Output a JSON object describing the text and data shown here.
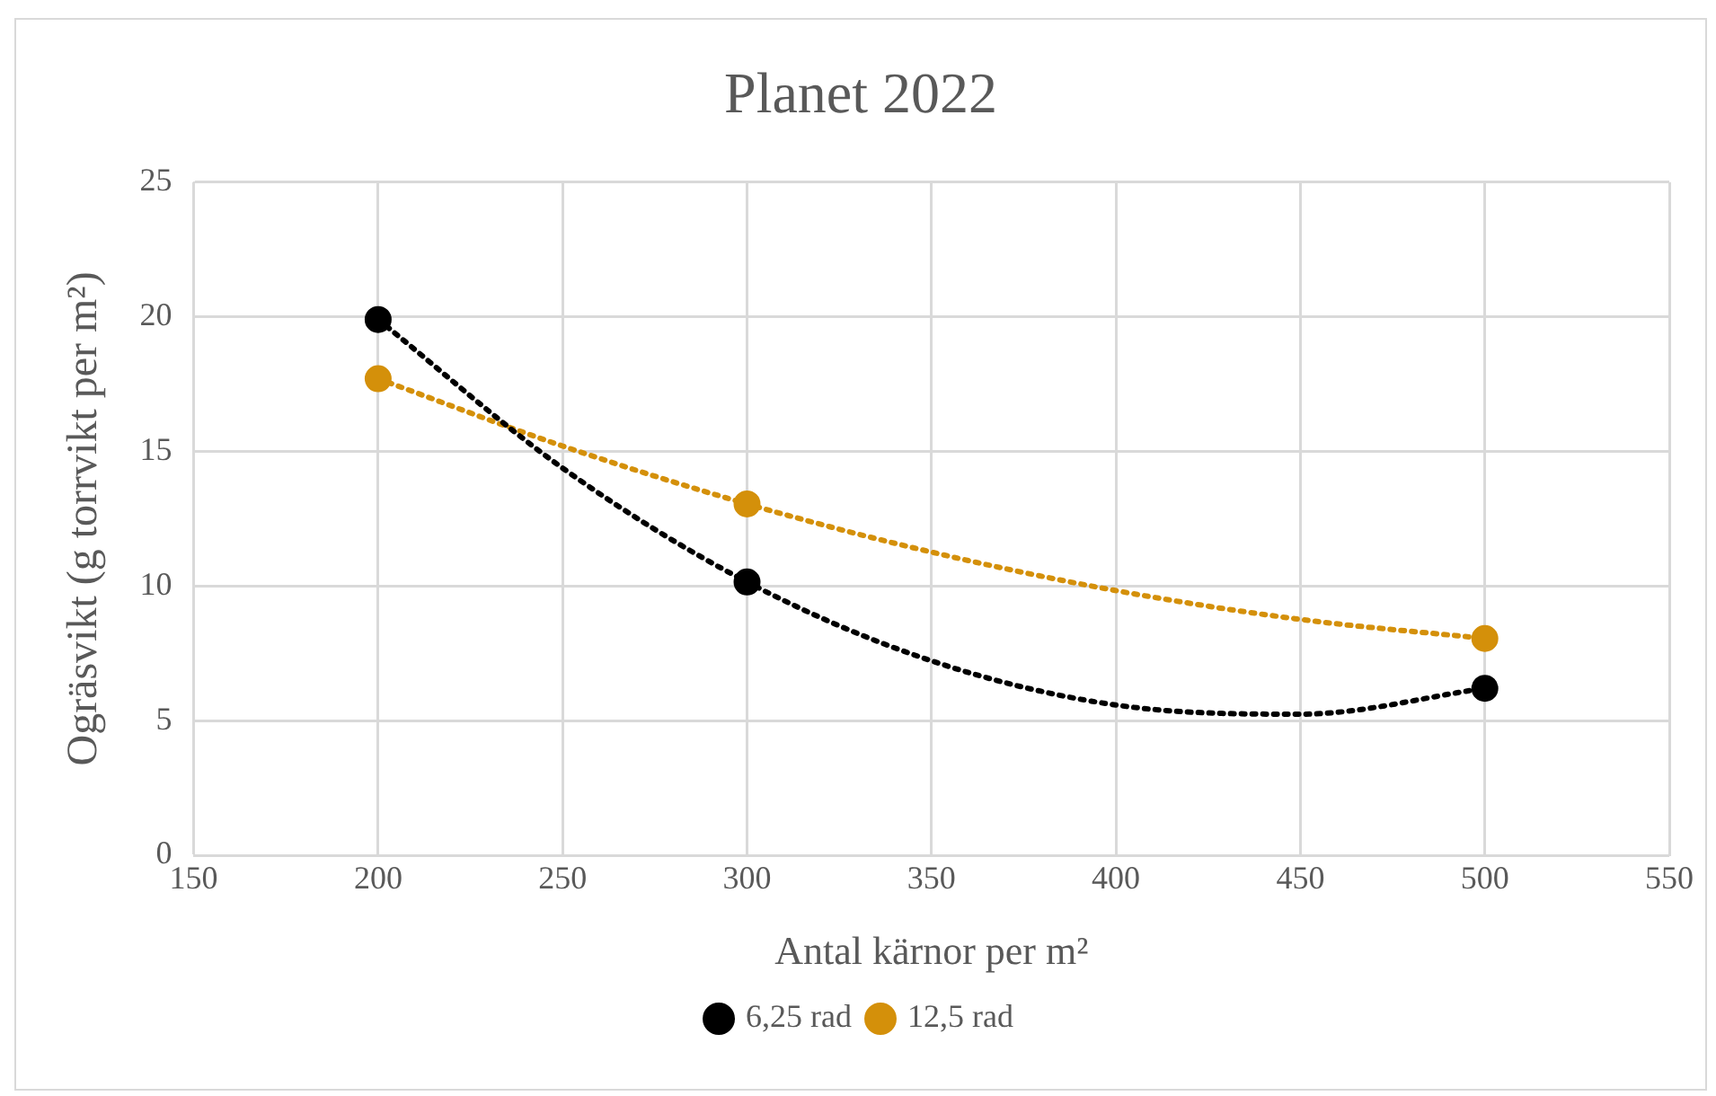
{
  "chart_data": {
    "type": "scatter",
    "title": "Planet 2022",
    "xlabel": "Antal kärnor per m²",
    "ylabel": "Ogräsvikt (g torrvikt per m²)",
    "xlim": [
      150,
      550
    ],
    "xticks": [
      150,
      200,
      250,
      300,
      350,
      400,
      450,
      500,
      550
    ],
    "ylim": [
      0,
      25
    ],
    "yticks": [
      0,
      5,
      10,
      15,
      20,
      25
    ],
    "grid": true,
    "legend": "bottom",
    "marker": "circle",
    "x": [
      200,
      300,
      500
    ],
    "series": [
      {
        "name": "6,25 rad",
        "color": "#000000",
        "values": [
          19.9,
          10.15,
          6.2
        ]
      },
      {
        "name": "12,5 rad",
        "color": "#d4900a",
        "values": [
          17.7,
          13.05,
          8.05
        ]
      },
      {
        "type": "line",
        "color": "#000000",
        "line_style": "dotted",
        "marker": "none",
        "x": [
          200,
          250,
          300,
          350,
          400,
          450,
          500
        ],
        "values": [
          19.9,
          14.38,
          10.15,
          7.22,
          5.58,
          5.24,
          6.2
        ]
      },
      {
        "type": "line",
        "color": "#d4900a",
        "line_style": "dotted",
        "marker": "none",
        "x": [
          200,
          250,
          300,
          350,
          400,
          450,
          500
        ],
        "values": [
          17.7,
          15.2,
          13.05,
          11.26,
          9.83,
          8.76,
          8.05
        ]
      }
    ]
  }
}
